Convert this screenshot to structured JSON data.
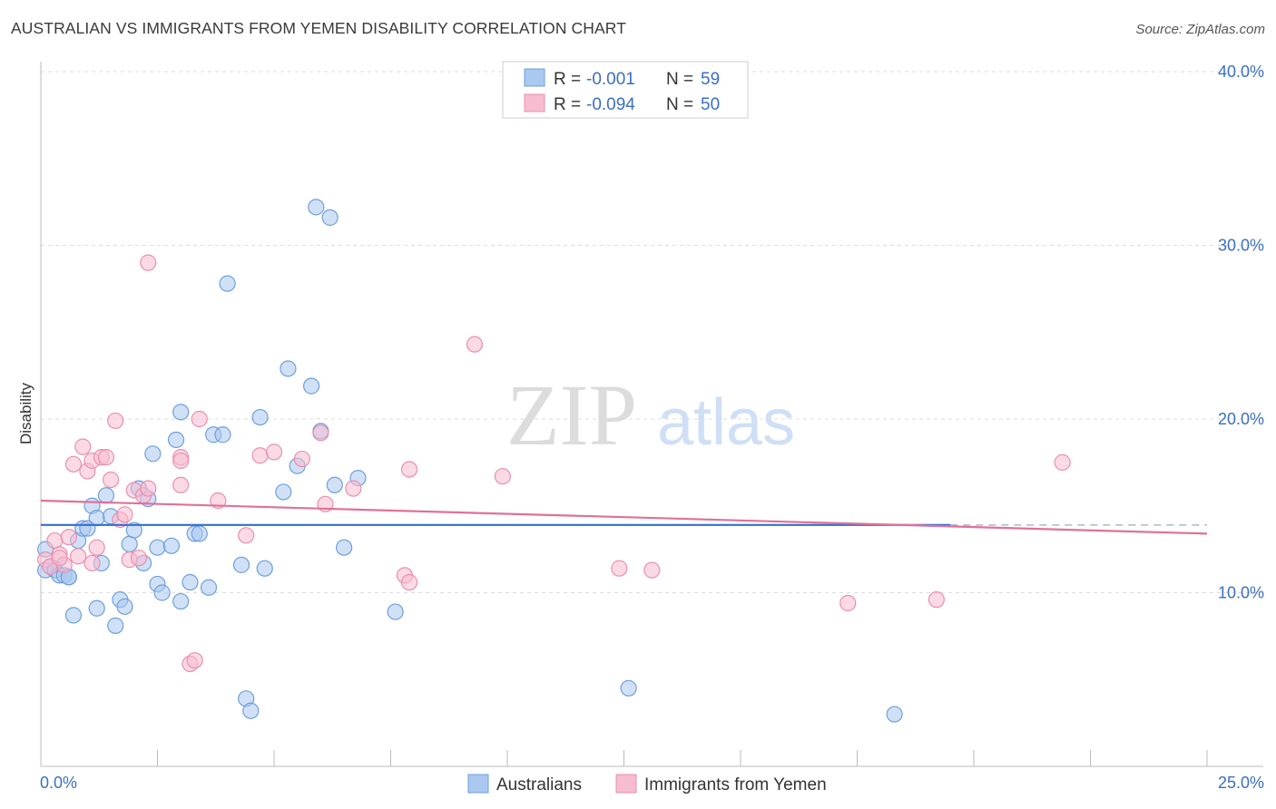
{
  "header": {
    "title": "AUSTRALIAN VS IMMIGRANTS FROM YEMEN DISABILITY CORRELATION CHART",
    "source": "Source: ZipAtlas.com"
  },
  "watermark": {
    "zip": "ZIP",
    "atlas": "atlas"
  },
  "colors": {
    "blue_fill": "#aac8f0",
    "blue_stroke": "#6f9fdc",
    "blue_line": "#2f6fd0",
    "pink_fill": "#f7bcd0",
    "pink_stroke": "#ea8fae",
    "pink_line": "#e0709a",
    "tick_text": "#3a6fc4",
    "grid": "#dddddd"
  },
  "legend": {
    "rows": [
      {
        "r_label": "R =",
        "r_value": "-0.001",
        "n_label": "N =",
        "n_value": "59"
      },
      {
        "r_label": "R =",
        "r_value": "-0.094",
        "n_label": "N =",
        "n_value": "50"
      }
    ]
  },
  "bottom_legend": {
    "blue": "Australians",
    "pink": "Immigrants from Yemen"
  },
  "chart_data": {
    "type": "scatter",
    "title": "AUSTRALIAN VS IMMIGRANTS FROM YEMEN DISABILITY CORRELATION CHART",
    "xlabel": "",
    "ylabel": "Disability",
    "xlim": [
      0,
      25
    ],
    "ylim": [
      0,
      40
    ],
    "x_tick_labels": [
      "0.0%",
      "25.0%"
    ],
    "y_ticks": [
      10,
      20,
      30,
      40
    ],
    "y_tick_labels": [
      "10.0%",
      "20.0%",
      "30.0%",
      "40.0%"
    ],
    "grid": true,
    "series": [
      {
        "name": "Australians",
        "r": -0.001,
        "n": 59,
        "trend": {
          "x0": 0,
          "y0": 13.9,
          "x1": 25,
          "y1": 13.9
        },
        "points": [
          [
            0.1,
            12.5
          ],
          [
            0.1,
            11.3
          ],
          [
            0.2,
            11.5
          ],
          [
            0.3,
            11.3
          ],
          [
            0.4,
            11.0
          ],
          [
            0.5,
            11.0
          ],
          [
            0.6,
            10.9
          ],
          [
            0.6,
            10.9
          ],
          [
            0.7,
            8.7
          ],
          [
            0.8,
            13.0
          ],
          [
            0.9,
            13.7
          ],
          [
            1.0,
            13.7
          ],
          [
            1.1,
            15.0
          ],
          [
            1.2,
            14.3
          ],
          [
            1.2,
            9.1
          ],
          [
            1.3,
            11.7
          ],
          [
            1.4,
            15.6
          ],
          [
            1.5,
            14.4
          ],
          [
            1.6,
            8.1
          ],
          [
            1.7,
            9.6
          ],
          [
            1.8,
            9.2
          ],
          [
            1.9,
            12.8
          ],
          [
            2.0,
            13.6
          ],
          [
            2.1,
            16.0
          ],
          [
            2.2,
            11.7
          ],
          [
            2.3,
            15.4
          ],
          [
            2.4,
            18.0
          ],
          [
            2.5,
            12.6
          ],
          [
            2.5,
            10.5
          ],
          [
            2.6,
            10.0
          ],
          [
            2.8,
            12.7
          ],
          [
            2.9,
            18.8
          ],
          [
            3.0,
            9.5
          ],
          [
            3.0,
            20.4
          ],
          [
            3.2,
            10.6
          ],
          [
            3.3,
            13.4
          ],
          [
            3.4,
            13.4
          ],
          [
            3.6,
            10.3
          ],
          [
            3.7,
            19.1
          ],
          [
            3.9,
            19.1
          ],
          [
            4.0,
            27.8
          ],
          [
            4.3,
            11.6
          ],
          [
            4.4,
            3.9
          ],
          [
            4.5,
            3.2
          ],
          [
            4.7,
            20.1
          ],
          [
            4.8,
            11.4
          ],
          [
            5.2,
            15.8
          ],
          [
            5.3,
            22.9
          ],
          [
            5.5,
            17.3
          ],
          [
            5.8,
            21.9
          ],
          [
            5.9,
            32.2
          ],
          [
            6.0,
            19.3
          ],
          [
            6.2,
            31.6
          ],
          [
            6.3,
            16.2
          ],
          [
            6.5,
            12.6
          ],
          [
            6.8,
            16.6
          ],
          [
            7.6,
            8.9
          ],
          [
            12.6,
            4.5
          ],
          [
            18.3,
            3.0
          ]
        ]
      },
      {
        "name": "Immigrants from Yemen",
        "r": -0.094,
        "n": 50,
        "trend": {
          "x0": 0,
          "y0": 15.3,
          "x1": 25,
          "y1": 13.4
        },
        "points": [
          [
            0.1,
            11.9
          ],
          [
            0.2,
            11.5
          ],
          [
            0.3,
            13.0
          ],
          [
            0.4,
            12.2
          ],
          [
            0.5,
            11.6
          ],
          [
            0.6,
            13.2
          ],
          [
            0.7,
            17.4
          ],
          [
            0.8,
            12.1
          ],
          [
            0.9,
            18.4
          ],
          [
            1.0,
            17.0
          ],
          [
            1.1,
            17.6
          ],
          [
            1.2,
            12.6
          ],
          [
            1.3,
            17.8
          ],
          [
            1.4,
            17.8
          ],
          [
            1.5,
            16.5
          ],
          [
            1.6,
            19.9
          ],
          [
            1.7,
            14.2
          ],
          [
            1.8,
            14.5
          ],
          [
            1.9,
            11.9
          ],
          [
            2.0,
            15.9
          ],
          [
            2.1,
            12.0
          ],
          [
            2.2,
            15.6
          ],
          [
            2.3,
            16.0
          ],
          [
            2.3,
            29.0
          ],
          [
            3.0,
            17.8
          ],
          [
            3.0,
            17.6
          ],
          [
            3.0,
            16.2
          ],
          [
            3.2,
            5.9
          ],
          [
            3.3,
            6.1
          ],
          [
            3.4,
            20.0
          ],
          [
            3.8,
            15.3
          ],
          [
            4.4,
            13.3
          ],
          [
            4.7,
            17.9
          ],
          [
            5.0,
            18.1
          ],
          [
            5.6,
            17.7
          ],
          [
            6.0,
            19.2
          ],
          [
            6.1,
            15.1
          ],
          [
            6.7,
            16.0
          ],
          [
            7.8,
            11.0
          ],
          [
            7.9,
            10.6
          ],
          [
            7.9,
            17.1
          ],
          [
            9.3,
            24.3
          ],
          [
            9.9,
            16.7
          ],
          [
            12.4,
            11.4
          ],
          [
            13.1,
            11.3
          ],
          [
            17.3,
            9.4
          ],
          [
            19.2,
            9.6
          ],
          [
            21.9,
            17.5
          ],
          [
            0.4,
            12.0
          ],
          [
            1.1,
            11.7
          ]
        ]
      }
    ]
  }
}
